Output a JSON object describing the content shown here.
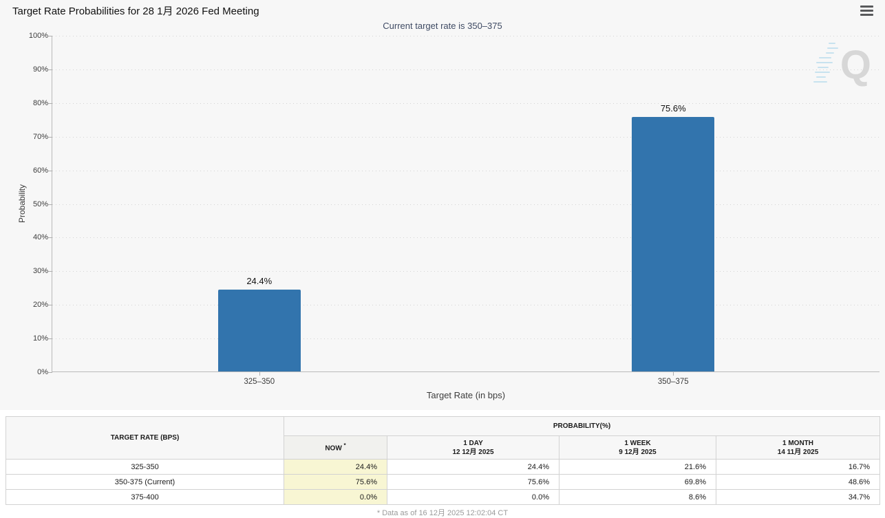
{
  "header": {
    "title": "Target Rate Probabilities for 28 1月 2026 Fed Meeting",
    "menu_icon": "hamburger-icon"
  },
  "chart_data": {
    "type": "bar",
    "title": "Target Rate Probabilities for 28 1月 2026 Fed Meeting",
    "subtitle": "Current target rate is 350–375",
    "categories": [
      "325–350",
      "350–375"
    ],
    "values": [
      24.4,
      75.6
    ],
    "value_labels": [
      "24.4%",
      "75.6%"
    ],
    "xlabel": "Target Rate (in bps)",
    "ylabel": "Probability",
    "ylim": [
      0,
      100
    ],
    "y_ticks": [
      "100%",
      "90%",
      "80%",
      "70%",
      "60%",
      "50%",
      "40%",
      "30%",
      "20%",
      "10%",
      "0%"
    ],
    "grid": true,
    "legend": "none",
    "bar_color": "#3274ad",
    "watermark_letter": "Q"
  },
  "table": {
    "col_target": "TARGET RATE (BPS)",
    "col_probability": "PROBABILITY(%)",
    "headers": {
      "now_label": "NOW",
      "now_sup": "*",
      "day_label": "1 DAY",
      "day_date": "12 12月 2025",
      "week_label": "1 WEEK",
      "week_date": "9 12月 2025",
      "month_label": "1 MONTH",
      "month_date": "14 11月 2025"
    },
    "rows": [
      {
        "target": "325-350",
        "now": "24.4%",
        "day": "24.4%",
        "week": "21.6%",
        "month": "16.7%"
      },
      {
        "target": "350-375 (Current)",
        "now": "75.6%",
        "day": "75.6%",
        "week": "69.8%",
        "month": "48.6%"
      },
      {
        "target": "375-400",
        "now": "0.0%",
        "day": "0.0%",
        "week": "8.6%",
        "month": "34.7%"
      }
    ],
    "highlight_color": "#f8f6d3",
    "footnote": "* Data as of 16 12月 2025 12:02:04 CT"
  }
}
